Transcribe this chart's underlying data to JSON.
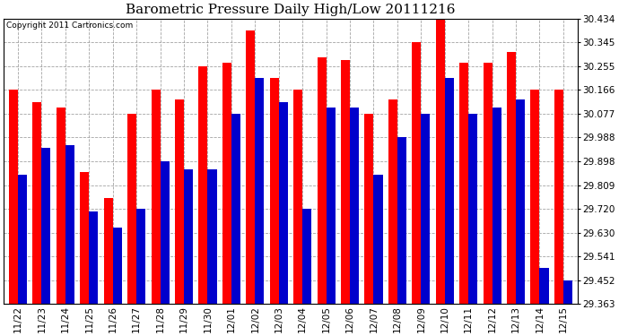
{
  "title": "Barometric Pressure Daily High/Low 20111216",
  "copyright": "Copyright 2011 Cartronics.com",
  "categories": [
    "11/22",
    "11/23",
    "11/24",
    "11/25",
    "11/26",
    "11/27",
    "11/28",
    "11/29",
    "11/30",
    "12/01",
    "12/02",
    "12/03",
    "12/04",
    "12/05",
    "12/06",
    "12/07",
    "12/08",
    "12/09",
    "12/10",
    "12/11",
    "12/12",
    "12/13",
    "12/14",
    "12/15"
  ],
  "highs": [
    30.166,
    30.122,
    30.099,
    29.86,
    29.76,
    30.077,
    30.166,
    30.13,
    30.255,
    30.27,
    30.39,
    30.21,
    30.166,
    30.29,
    30.28,
    30.077,
    30.13,
    30.345,
    30.434,
    30.27,
    30.27,
    30.31,
    30.166,
    30.166
  ],
  "lows": [
    29.85,
    29.95,
    29.96,
    29.71,
    29.65,
    29.72,
    29.9,
    29.87,
    29.87,
    30.077,
    30.21,
    30.12,
    29.72,
    30.1,
    30.1,
    29.85,
    29.988,
    30.077,
    30.21,
    30.077,
    30.1,
    30.13,
    29.5,
    29.452
  ],
  "high_color": "#ff0000",
  "low_color": "#0000cc",
  "background_color": "#ffffff",
  "grid_color": "#999999",
  "yticks": [
    29.363,
    29.452,
    29.541,
    29.63,
    29.72,
    29.809,
    29.898,
    29.988,
    30.077,
    30.166,
    30.255,
    30.345,
    30.434
  ],
  "ymin": 29.363,
  "ymax": 30.434,
  "title_fontsize": 11,
  "tick_fontsize": 7.5,
  "copyright_fontsize": 6.5
}
